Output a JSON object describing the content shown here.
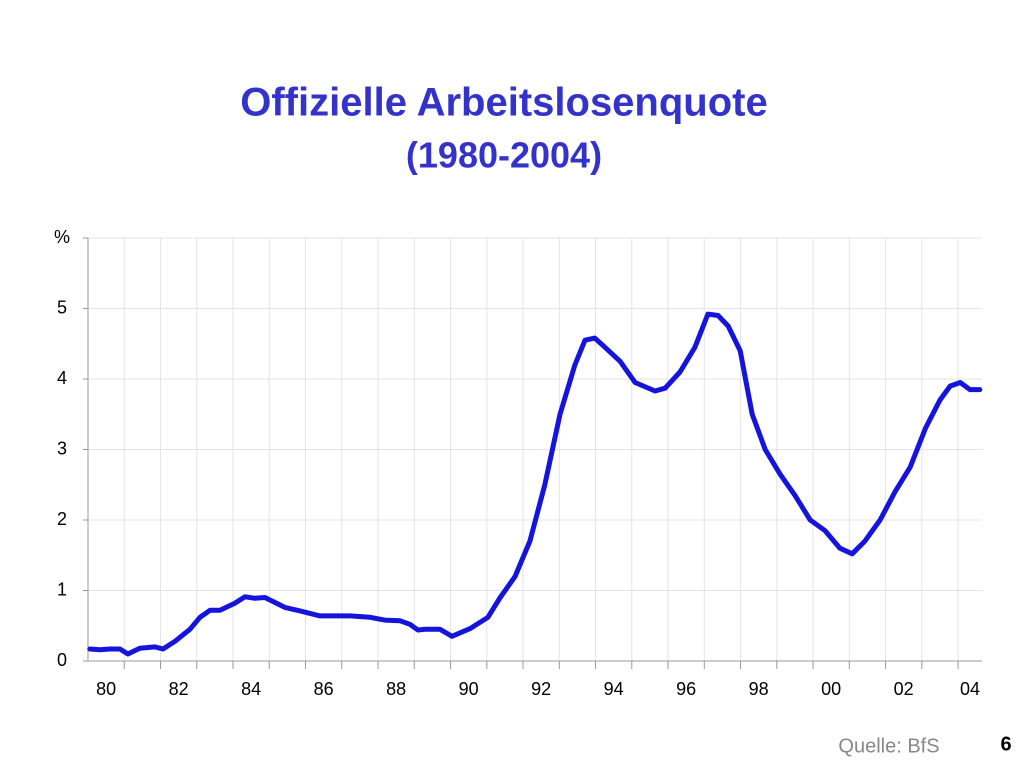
{
  "chart_data": {
    "type": "line",
    "title": "Offizielle Arbeitslosenquote",
    "subtitle": "(1980-2004)",
    "source": "Quelle: BfS",
    "page_number": "6",
    "series": [
      {
        "name": "Arbeitslosenquote",
        "color": "#1414dc",
        "x": [
          1980.05,
          1980.33,
          1980.61,
          1980.88,
          1981.1,
          1981.43,
          1981.85,
          1982.07,
          1982.4,
          1982.81,
          1983.09,
          1983.37,
          1983.64,
          1984.05,
          1984.33,
          1984.6,
          1984.88,
          1985.43,
          1985.85,
          1986.4,
          1987.23,
          1987.78,
          1988.19,
          1988.61,
          1988.88,
          1989.1,
          1989.3,
          1989.71,
          1990.04,
          1990.54,
          1991.03,
          1991.37,
          1991.78,
          1992.19,
          1992.6,
          1993.02,
          1993.43,
          1993.71,
          1993.98,
          1994.26,
          1994.68,
          1995.09,
          1995.64,
          1995.92,
          1996.33,
          1996.74,
          1997.1,
          1997.38,
          1997.66,
          1997.99,
          1998.32,
          1998.68,
          1999.09,
          1999.5,
          1999.92,
          2000.33,
          2000.74,
          2001.08,
          2001.43,
          2001.85,
          2002.26,
          2002.68,
          2003.1,
          2003.5,
          2003.78,
          2004.06,
          2004.33,
          2004.6
        ],
        "values": [
          0.17,
          0.16,
          0.17,
          0.17,
          0.1,
          0.18,
          0.2,
          0.17,
          0.28,
          0.45,
          0.62,
          0.72,
          0.72,
          0.82,
          0.91,
          0.89,
          0.9,
          0.76,
          0.71,
          0.64,
          0.64,
          0.62,
          0.58,
          0.57,
          0.52,
          0.44,
          0.45,
          0.45,
          0.35,
          0.46,
          0.62,
          0.9,
          1.2,
          1.7,
          2.5,
          3.5,
          4.2,
          4.55,
          4.58,
          4.45,
          4.25,
          3.95,
          3.83,
          3.87,
          4.1,
          4.45,
          4.92,
          4.9,
          4.75,
          4.4,
          3.5,
          3.0,
          2.65,
          2.35,
          2.0,
          1.85,
          1.6,
          1.52,
          1.7,
          2.0,
          2.4,
          2.75,
          3.3,
          3.7,
          3.9,
          3.95,
          3.85,
          3.85
        ]
      }
    ],
    "xlim": [
      1980,
      2004.66
    ],
    "xticks": [
      {
        "value": 1980.5,
        "label": "80"
      },
      {
        "value": 1982.5,
        "label": "82"
      },
      {
        "value": 1984.5,
        "label": "84"
      },
      {
        "value": 1986.5,
        "label": "86"
      },
      {
        "value": 1988.5,
        "label": "88"
      },
      {
        "value": 1990.5,
        "label": "90"
      },
      {
        "value": 1992.5,
        "label": "92"
      },
      {
        "value": 1994.5,
        "label": "94"
      },
      {
        "value": 1996.5,
        "label": "96"
      },
      {
        "value": 1998.5,
        "label": "98"
      },
      {
        "value": 2000.5,
        "label": "00"
      },
      {
        "value": 2002.5,
        "label": "02"
      },
      {
        "value": 2004.33,
        "label": "04"
      }
    ],
    "xgrid": [
      1981,
      1982,
      1983,
      1984,
      1985,
      1986,
      1987,
      1988,
      1989,
      1990,
      1991,
      1992,
      1993,
      1994,
      1995,
      1996,
      1997,
      1998,
      1999,
      2000,
      2001,
      2002,
      2003,
      2004
    ],
    "ylim": [
      0,
      6
    ],
    "yticks": [
      0,
      1,
      2,
      3,
      4,
      5,
      {
        "value": 6,
        "label": "%"
      }
    ],
    "grid": true
  }
}
